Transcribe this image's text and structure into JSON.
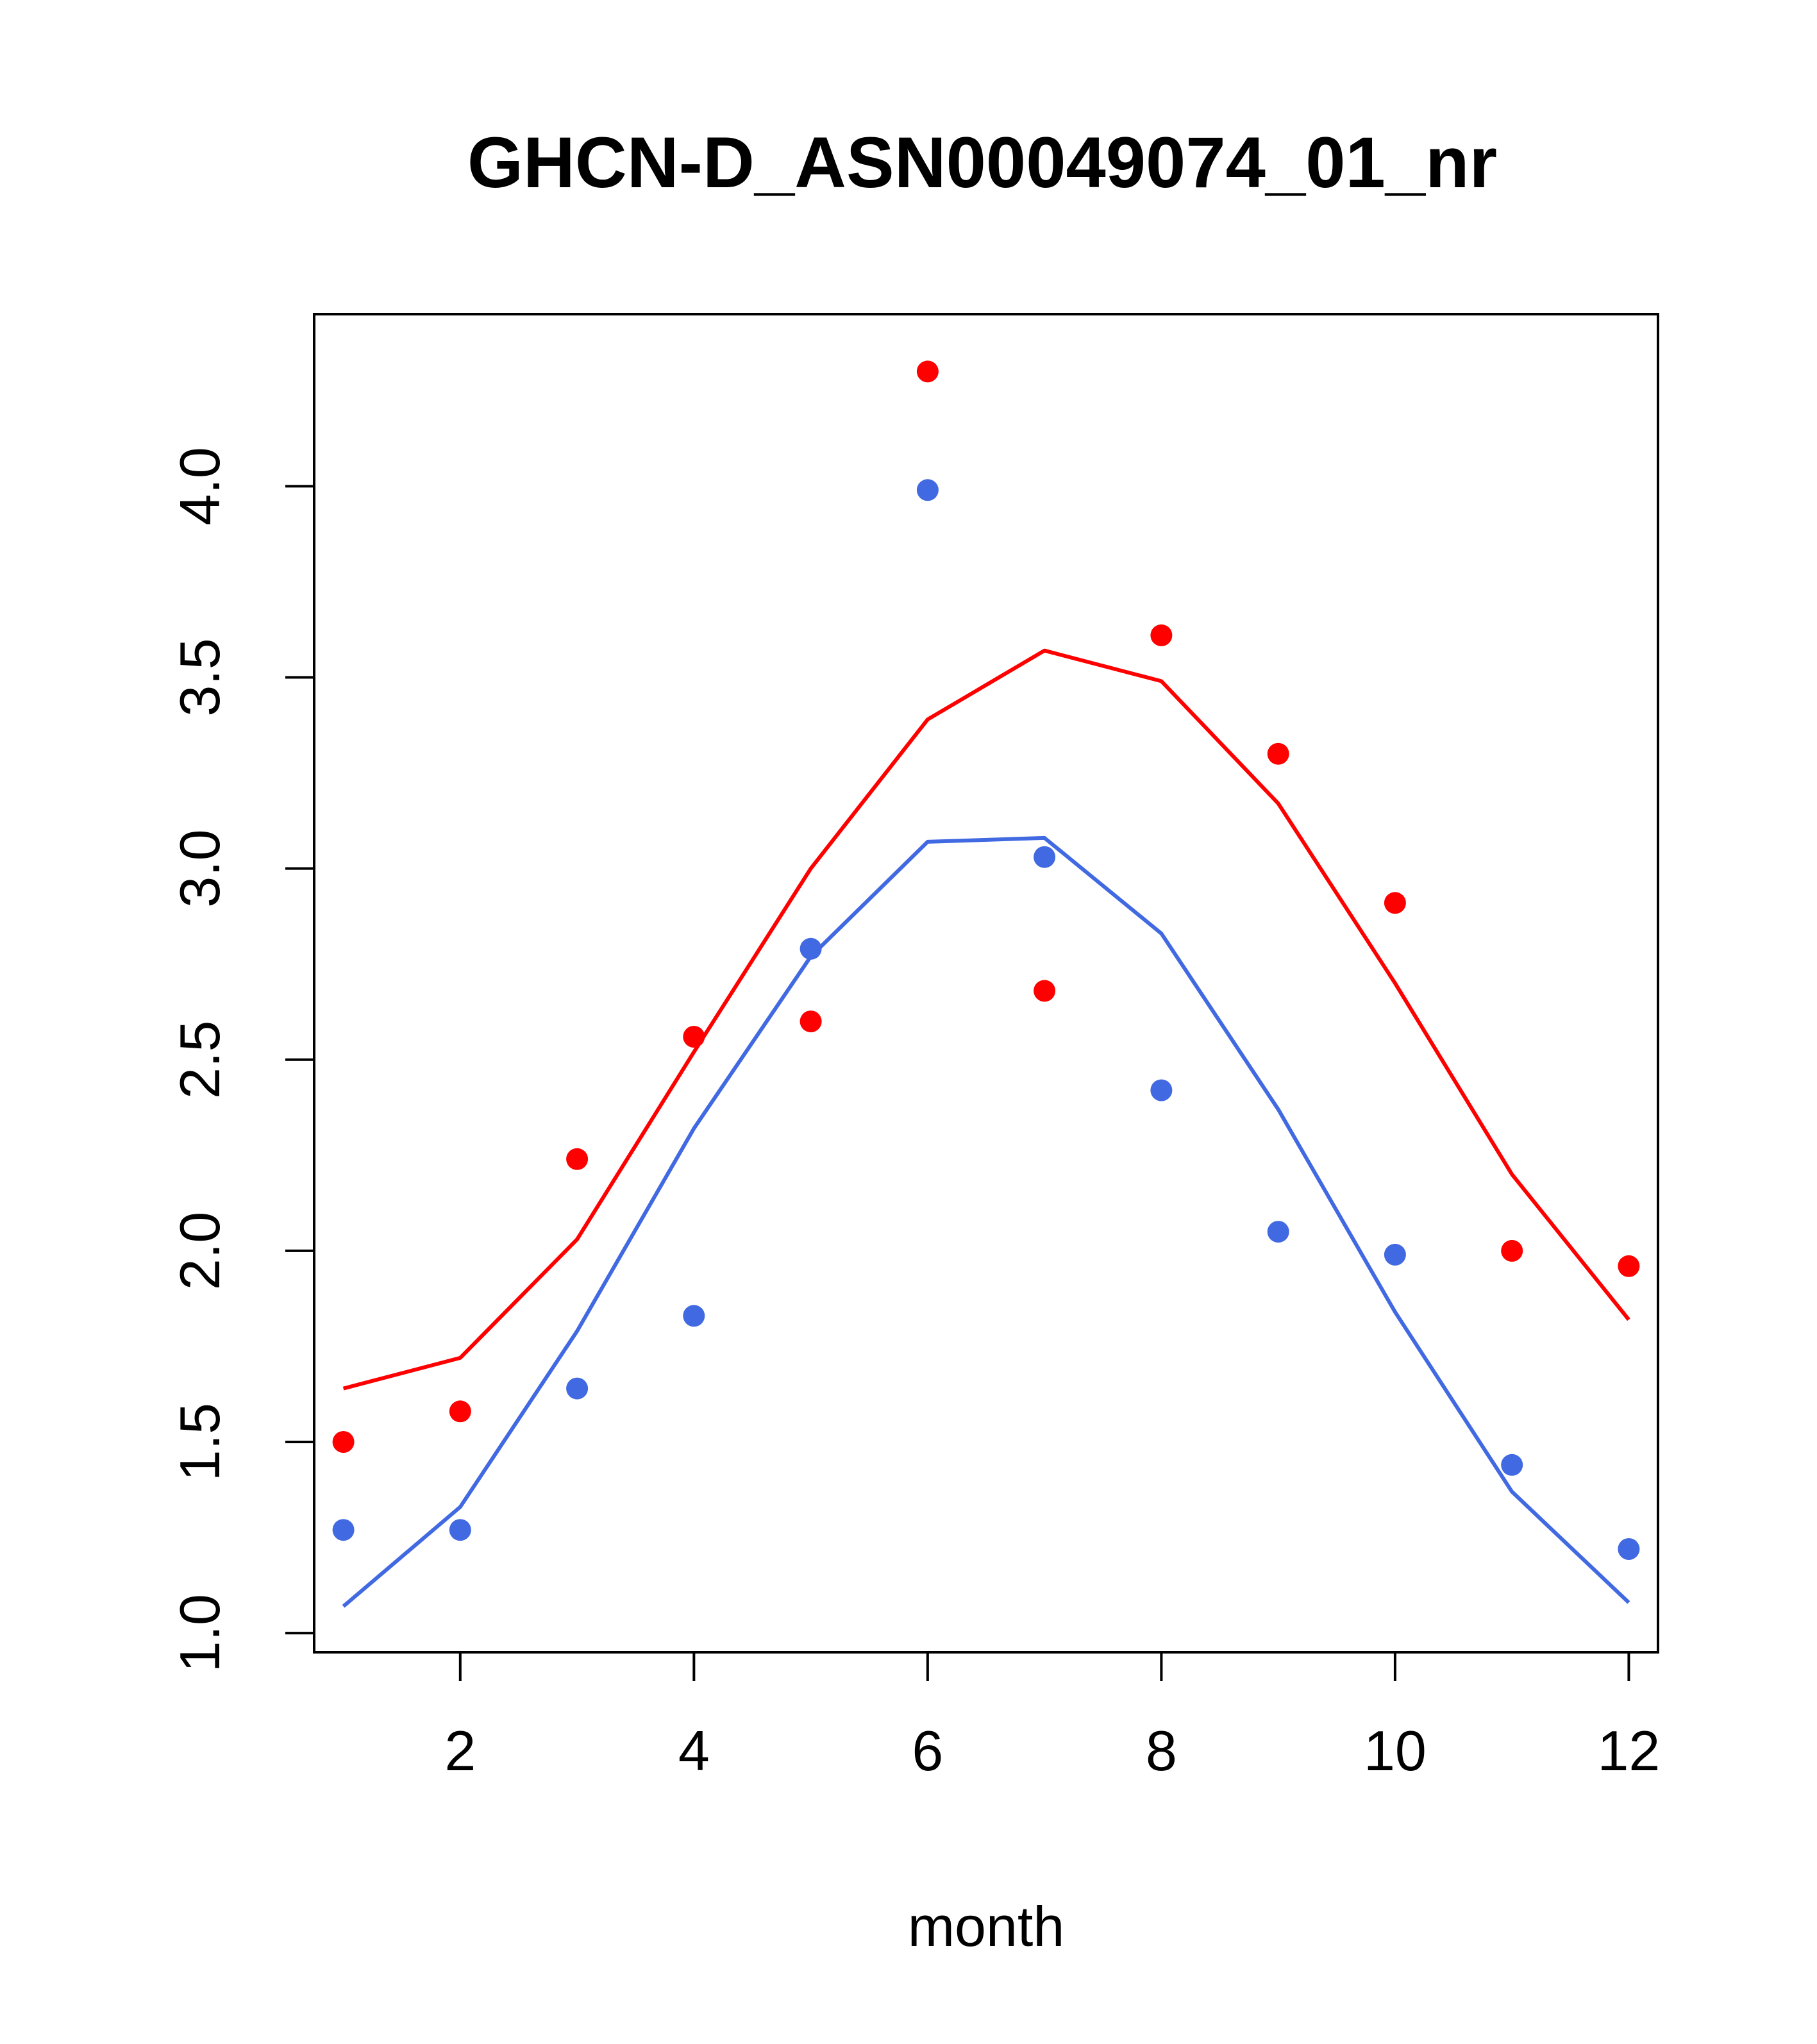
{
  "chart_data": {
    "type": "scatter",
    "title": "GHCN-D_ASN00049074_01_nr",
    "xlabel": "month",
    "ylabel": "",
    "xlim": [
      0.75,
      12.25
    ],
    "ylim": [
      0.95,
      4.45
    ],
    "xticks": [
      2,
      4,
      6,
      8,
      10,
      12
    ],
    "yticks": [
      1.0,
      1.5,
      2.0,
      2.5,
      3.0,
      3.5,
      4.0
    ],
    "x": [
      1,
      2,
      3,
      4,
      5,
      6,
      7,
      8,
      9,
      10,
      11,
      12
    ],
    "series": [
      {
        "color": "#ff0000",
        "points": [
          1.5,
          1.58,
          2.24,
          2.56,
          2.6,
          4.3,
          2.68,
          3.61,
          3.3,
          2.91,
          2.0,
          1.96
        ],
        "line": [
          1.64,
          1.72,
          2.03,
          2.52,
          3.0,
          3.39,
          3.57,
          3.49,
          3.17,
          2.7,
          2.2,
          1.82
        ]
      },
      {
        "color": "#4169e1",
        "points": [
          1.27,
          1.27,
          1.64,
          1.83,
          2.79,
          3.99,
          3.03,
          2.42,
          2.05,
          1.99,
          1.44,
          1.22
        ],
        "line": [
          1.07,
          1.33,
          1.79,
          2.32,
          2.77,
          3.07,
          3.08,
          2.83,
          2.37,
          1.84,
          1.37,
          1.08
        ]
      }
    ]
  }
}
